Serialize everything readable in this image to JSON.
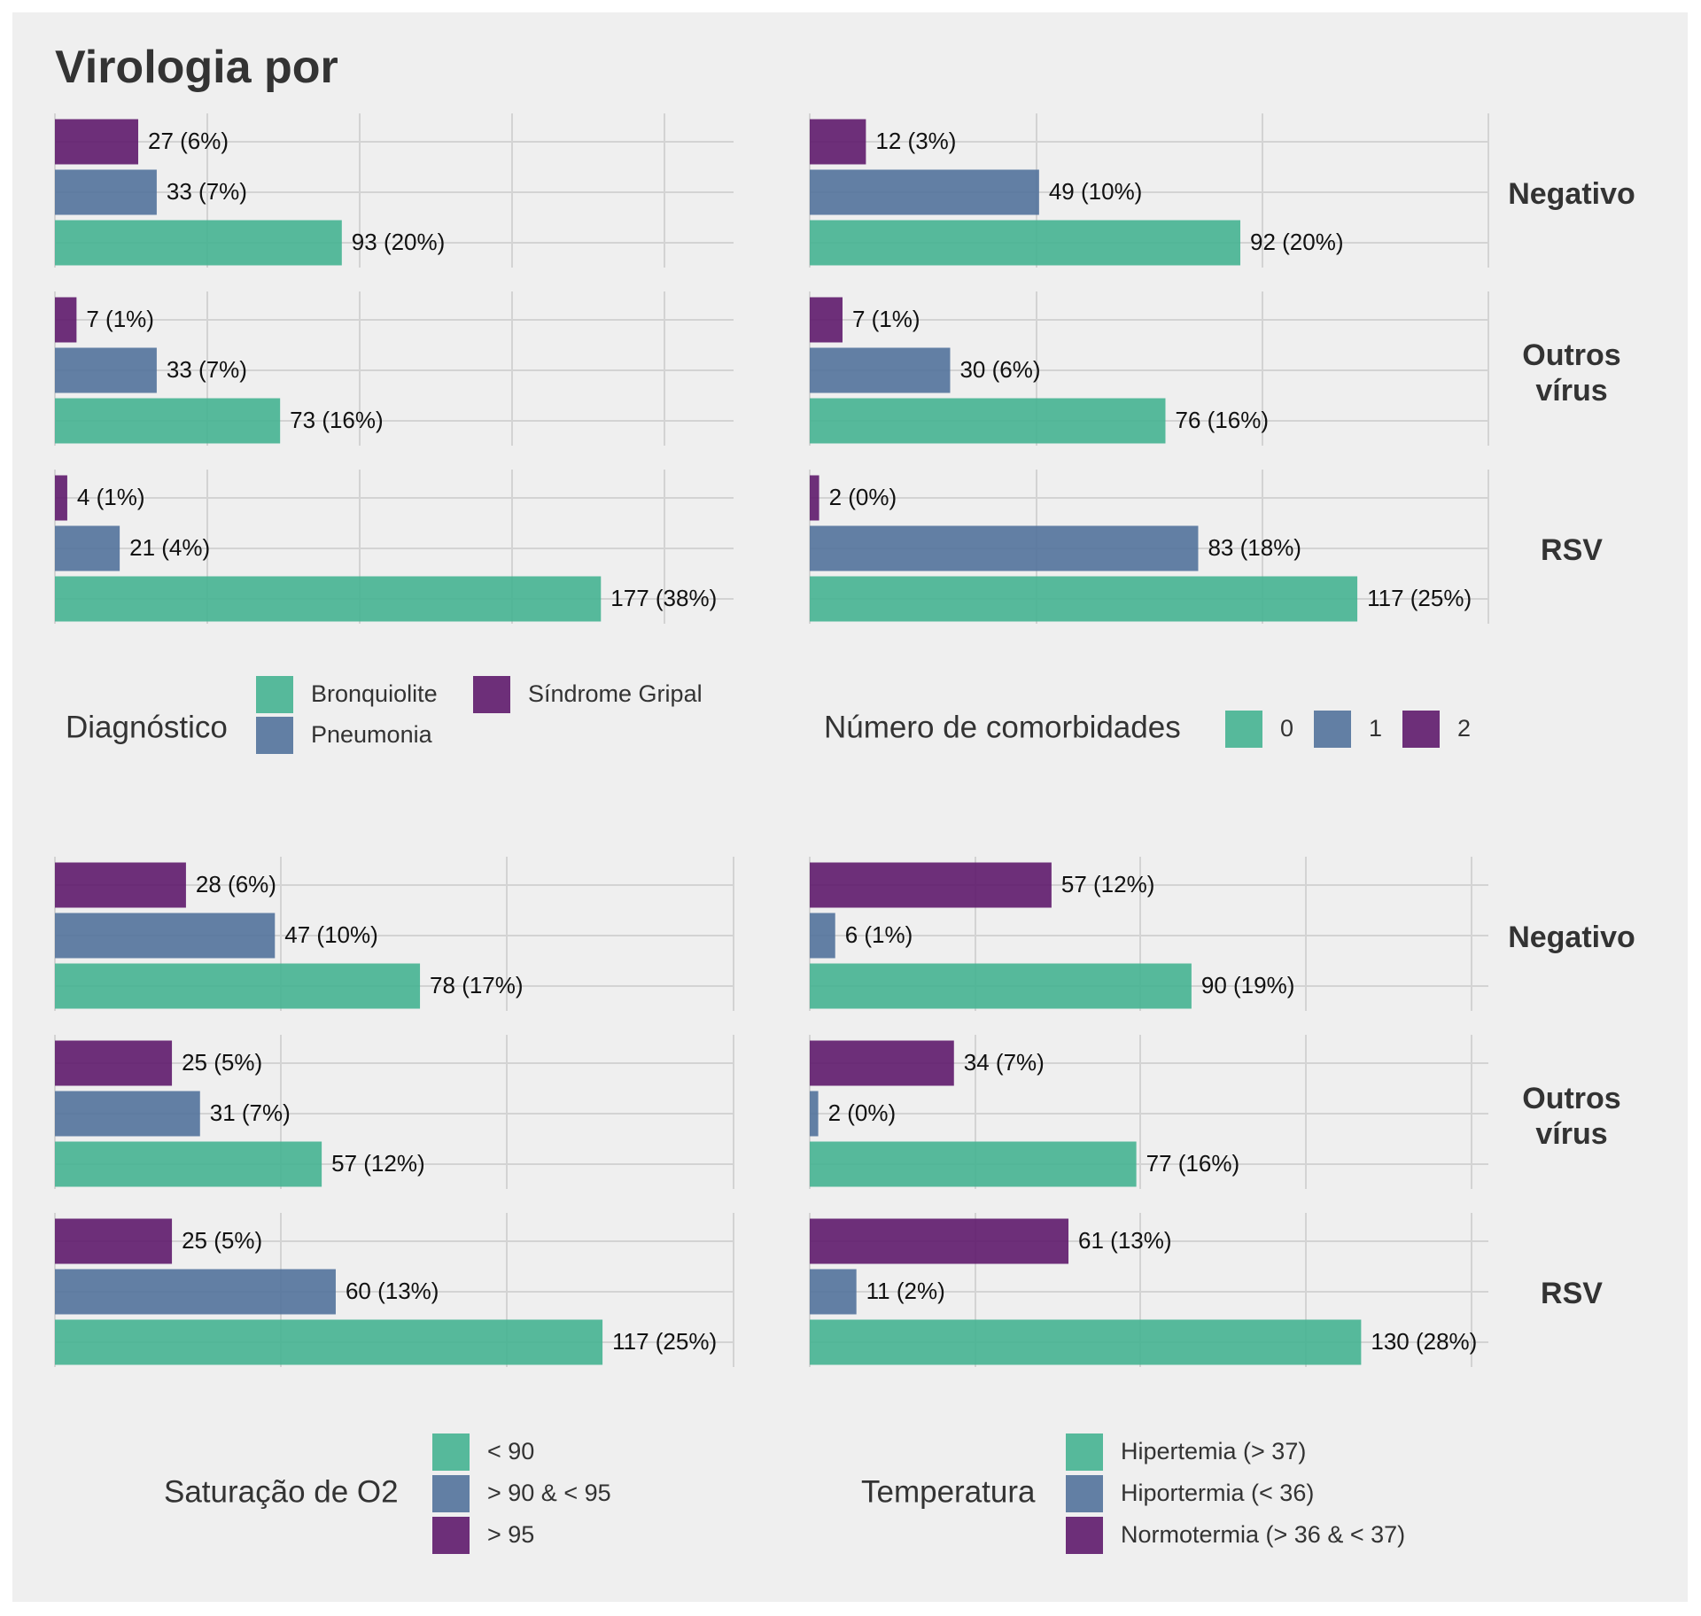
{
  "title": "Virologia por",
  "facets": [
    "Negativo",
    "Outros vírus",
    "RSV"
  ],
  "colors": {
    "background": "#efefef",
    "grid": "#d3d3d3",
    "level1": "#45b391",
    "level2": "#52729b",
    "level3": "#5e1a6b"
  },
  "chart_data": [
    {
      "type": "bar",
      "orientation": "horizontal",
      "facets": [
        "Negativo",
        "Outros vírus",
        "RSV"
      ],
      "categories": [
        "Bronquiolite",
        "Pneumonia",
        "Síndrome Gripal"
      ],
      "series": [
        {
          "facet": "Negativo",
          "values": [
            93,
            33,
            27
          ],
          "labels": [
            "93 (20%)",
            "33 (7%)",
            "27 (6%)"
          ]
        },
        {
          "facet": "Outros vírus",
          "values": [
            73,
            33,
            7
          ],
          "labels": [
            "73 (16%)",
            "33 (7%)",
            "7 (1%)"
          ]
        },
        {
          "facet": "RSV",
          "values": [
            177,
            21,
            4
          ],
          "labels": [
            "177 (38%)",
            "21 (4%)",
            "4 (1%)"
          ]
        }
      ],
      "legend": {
        "title": "Diagnóstico",
        "items": [
          "Bronquiolite",
          "Pneumonia",
          "Síndrome Gripal"
        ],
        "position": "bottom"
      },
      "xlim": [
        0,
        220
      ],
      "grid": true
    },
    {
      "type": "bar",
      "orientation": "horizontal",
      "facets": [
        "Negativo",
        "Outros vírus",
        "RSV"
      ],
      "categories": [
        "0",
        "1",
        "2"
      ],
      "series": [
        {
          "facet": "Negativo",
          "values": [
            92,
            49,
            12
          ],
          "labels": [
            "92 (20%)",
            "49 (10%)",
            "12 (3%)"
          ]
        },
        {
          "facet": "Outros vírus",
          "values": [
            76,
            30,
            7
          ],
          "labels": [
            "76 (16%)",
            "30 (6%)",
            "7 (1%)"
          ]
        },
        {
          "facet": "RSV",
          "values": [
            117,
            83,
            2
          ],
          "labels": [
            "117 (25%)",
            "83 (18%)",
            "2 (0%)"
          ]
        }
      ],
      "legend": {
        "title": "Número de comorbidades",
        "items": [
          "0",
          "1",
          "2"
        ],
        "position": "bottom"
      },
      "xlim": [
        0,
        145
      ],
      "grid": true
    },
    {
      "type": "bar",
      "orientation": "horizontal",
      "facets": [
        "Negativo",
        "Outros vírus",
        "RSV"
      ],
      "categories": [
        "< 90",
        "> 90 & < 95",
        "> 95"
      ],
      "series": [
        {
          "facet": "Negativo",
          "values": [
            78,
            47,
            28
          ],
          "labels": [
            "78 (17%)",
            "47 (10%)",
            "28 (6%)"
          ]
        },
        {
          "facet": "Outros vírus",
          "values": [
            57,
            31,
            25
          ],
          "labels": [
            "57 (12%)",
            "31 (7%)",
            "25 (5%)"
          ]
        },
        {
          "facet": "RSV",
          "values": [
            117,
            60,
            25
          ],
          "labels": [
            "117 (25%)",
            "60 (13%)",
            "25 (5%)"
          ]
        }
      ],
      "legend": {
        "title": "Saturação de O2",
        "items": [
          "< 90",
          "> 90 & < 95",
          "> 95"
        ],
        "position": "bottom"
      },
      "xlim": [
        0,
        145
      ],
      "grid": true
    },
    {
      "type": "bar",
      "orientation": "horizontal",
      "facets": [
        "Negativo",
        "Outros vírus",
        "RSV"
      ],
      "categories": [
        "Hipertemia (> 37)",
        "Hipotermia (< 36)",
        "Normotermia (> 36 & < 37)"
      ],
      "series": [
        {
          "facet": "Negativo",
          "values": [
            90,
            6,
            57
          ],
          "labels": [
            "90 (19%)",
            "6 (1%)",
            "57 (12%)"
          ]
        },
        {
          "facet": "Outros vírus",
          "values": [
            77,
            2,
            34
          ],
          "labels": [
            "77 (16%)",
            "2 (0%)",
            "34 (7%)"
          ]
        },
        {
          "facet": "RSV",
          "values": [
            130,
            11,
            61
          ],
          "labels": [
            "130 (28%)",
            "11 (2%)",
            "61 (13%)"
          ]
        }
      ],
      "legend": {
        "title": "Temperatura",
        "items": [
          "Hipertemia (> 37)",
          "Hiportermia (< 36)",
          "Normotermia (> 36 & < 37)"
        ],
        "position": "bottom"
      },
      "xlim": [
        0,
        160
      ],
      "grid": true
    }
  ]
}
